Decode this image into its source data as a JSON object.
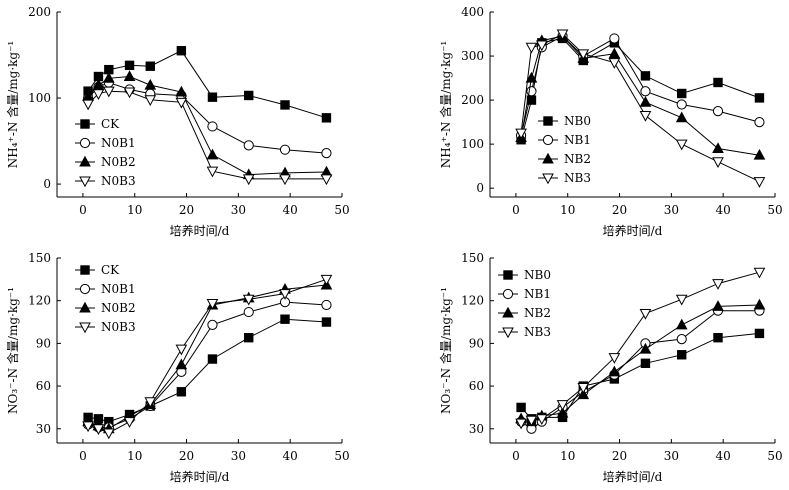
{
  "chart_data": [
    {
      "id": "top-left",
      "type": "line",
      "ylabel": "NH₄⁺-N 含量/mg·kg⁻¹",
      "xlabel": "培养时间/d",
      "xlim": [
        -5,
        50
      ],
      "ylim": [
        -15,
        200
      ],
      "xticks": [
        0,
        10,
        20,
        30,
        40,
        50
      ],
      "yticks": [
        0,
        100,
        200
      ],
      "legend_position": "left",
      "x": [
        1,
        3,
        5,
        9,
        13,
        19,
        25,
        32,
        39,
        47
      ],
      "series": [
        {
          "name": "CK",
          "marker": "square-filled",
          "values": [
            108,
            125,
            133,
            138,
            137,
            155,
            101,
            103,
            92,
            77
          ]
        },
        {
          "name": "N0B1",
          "marker": "circle-open",
          "values": [
            100,
            113,
            118,
            110,
            105,
            103,
            67,
            45,
            40,
            36
          ]
        },
        {
          "name": "N0B2",
          "marker": "triangle-filled",
          "values": [
            102,
            115,
            123,
            125,
            115,
            107,
            34,
            11,
            13,
            14
          ]
        },
        {
          "name": "N0B3",
          "marker": "triangle-open",
          "values": [
            93,
            105,
            108,
            107,
            98,
            95,
            15,
            6,
            6,
            6
          ]
        }
      ]
    },
    {
      "id": "top-right",
      "type": "line",
      "ylabel": "NH₄⁺-N 含量/mg·kg⁻¹",
      "xlabel": "培养时间/d",
      "xlim": [
        -5,
        50
      ],
      "ylim": [
        -20,
        400
      ],
      "xticks": [
        0,
        10,
        20,
        30,
        40,
        50
      ],
      "yticks": [
        0,
        100,
        200,
        300,
        400
      ],
      "legend_position": "left",
      "x": [
        1,
        3,
        5,
        9,
        13,
        19,
        25,
        32,
        39,
        47
      ],
      "series": [
        {
          "name": "NB0",
          "marker": "square-filled",
          "values": [
            110,
            200,
            330,
            340,
            290,
            330,
            255,
            215,
            240,
            205
          ]
        },
        {
          "name": "NB1",
          "marker": "circle-open",
          "values": [
            120,
            220,
            320,
            345,
            300,
            340,
            220,
            190,
            175,
            150
          ]
        },
        {
          "name": "NB2",
          "marker": "triangle-filled",
          "values": [
            115,
            250,
            335,
            345,
            295,
            305,
            195,
            160,
            90,
            75
          ]
        },
        {
          "name": "NB3",
          "marker": "triangle-open",
          "values": [
            125,
            320,
            325,
            350,
            305,
            285,
            165,
            100,
            60,
            15
          ]
        }
      ]
    },
    {
      "id": "bottom-left",
      "type": "line",
      "ylabel": "NO₃⁻-N 含量/mg·kg⁻¹",
      "xlabel": "培养时间/d",
      "xlim": [
        -5,
        50
      ],
      "ylim": [
        20,
        150
      ],
      "xticks": [
        0,
        10,
        20,
        30,
        40,
        50
      ],
      "yticks": [
        30,
        60,
        90,
        120,
        150
      ],
      "legend_position": "top-left",
      "x": [
        1,
        3,
        5,
        9,
        13,
        19,
        25,
        32,
        39,
        47
      ],
      "series": [
        {
          "name": "CK",
          "marker": "square-filled",
          "values": [
            38,
            37,
            35,
            40,
            46,
            56,
            79,
            94,
            107,
            105
          ]
        },
        {
          "name": "N0B1",
          "marker": "circle-open",
          "values": [
            33,
            31,
            31,
            37,
            46,
            70,
            103,
            112,
            119,
            117
          ]
        },
        {
          "name": "N0B2",
          "marker": "triangle-filled",
          "values": [
            35,
            32,
            30,
            39,
            47,
            75,
            117,
            122,
            128,
            131
          ]
        },
        {
          "name": "N0B3",
          "marker": "triangle-open",
          "values": [
            32,
            30,
            27,
            35,
            49,
            86,
            118,
            121,
            125,
            135
          ]
        }
      ]
    },
    {
      "id": "bottom-right",
      "type": "line",
      "ylabel": "NO₃⁻-N 含量/mg·kg⁻¹",
      "xlabel": "培养时间/d",
      "xlim": [
        -5,
        50
      ],
      "ylim": [
        20,
        150
      ],
      "xticks": [
        0,
        10,
        20,
        30,
        40,
        50
      ],
      "yticks": [
        30,
        60,
        90,
        120,
        150
      ],
      "legend_position": "top-left",
      "x": [
        1,
        3,
        5,
        9,
        13,
        19,
        25,
        32,
        39,
        47
      ],
      "series": [
        {
          "name": "NB0",
          "marker": "square-filled",
          "values": [
            45,
            37,
            38,
            38,
            60,
            65,
            76,
            82,
            94,
            97
          ]
        },
        {
          "name": "NB1",
          "marker": "circle-open",
          "values": [
            35,
            30,
            35,
            45,
            56,
            68,
            90,
            93,
            113,
            113
          ]
        },
        {
          "name": "NB2",
          "marker": "triangle-filled",
          "values": [
            37,
            35,
            39,
            41,
            54,
            70,
            86,
            103,
            116,
            117
          ]
        },
        {
          "name": "NB3",
          "marker": "triangle-open",
          "values": [
            34,
            36,
            37,
            47,
            59,
            80,
            111,
            121,
            132,
            140
          ]
        }
      ]
    }
  ]
}
